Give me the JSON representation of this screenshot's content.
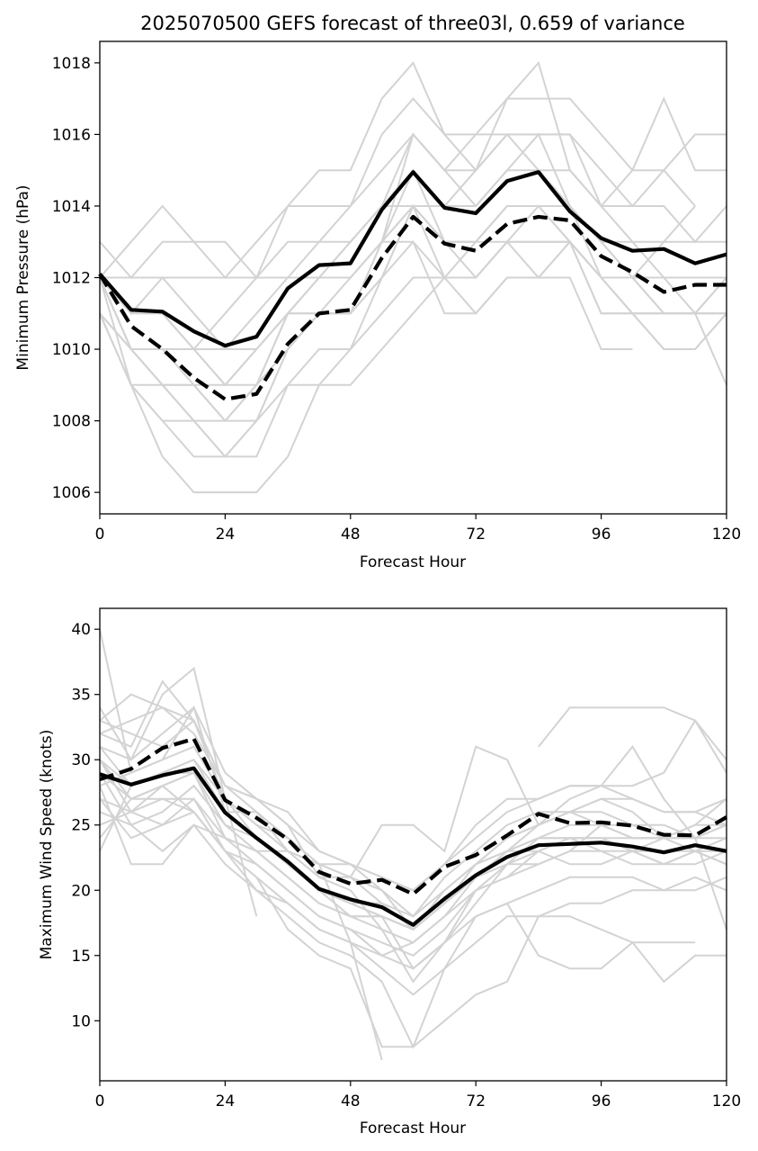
{
  "chart_data": [
    {
      "type": "line",
      "title": "2025070500 GEFS forecast of three03l, 0.659 of variance",
      "xlabel": "Forecast Hour",
      "ylabel": "Minimum Pressure (hPa)",
      "xlim": [
        0,
        120
      ],
      "ylim": [
        1005.4,
        1018.6
      ],
      "xticks": [
        0,
        24,
        48,
        72,
        96,
        120
      ],
      "yticks": [
        1006,
        1008,
        1010,
        1012,
        1014,
        1016,
        1018
      ],
      "grid": false,
      "legend": "none",
      "member_color": "#d3d3d3",
      "mean_color": "#000000",
      "x": [
        0,
        6,
        12,
        18,
        24,
        30,
        36,
        42,
        48,
        54,
        60,
        66,
        72,
        78,
        84,
        90,
        96,
        102,
        108,
        114,
        120
      ],
      "series": [
        {
          "style": "solid",
          "values": [
            1012.1,
            1011.1,
            1011.05,
            1010.5,
            1010.1,
            1010.35,
            1011.7,
            1012.35,
            1012.4,
            1013.9,
            1014.95,
            1013.95,
            1013.8,
            1014.7,
            1014.95,
            1013.85,
            1013.1,
            1012.75,
            1012.8,
            1012.4,
            1012.65
          ]
        },
        {
          "style": "dashed",
          "values": [
            1012.1,
            1010.65,
            1010.0,
            1009.2,
            1008.6,
            1008.75,
            1010.15,
            1011.0,
            1011.1,
            1012.55,
            1013.7,
            1012.95,
            1012.75,
            1013.5,
            1013.7,
            1013.6,
            1012.6,
            1012.15,
            1011.6,
            1011.8,
            1011.8
          ]
        },
        {
          "style": "member",
          "values": [
            1013,
            1012,
            1012,
            1012,
            1012,
            1012,
            1013,
            1013,
            1014,
            1015,
            1016,
            1015,
            1016,
            1016,
            1016,
            1016,
            1014,
            1014,
            1014,
            1013,
            1014
          ]
        },
        {
          "style": "member",
          "values": [
            1012,
            1012,
            1013,
            1013,
            1013,
            1012,
            1014,
            1014,
            1014,
            1016,
            1017,
            1016,
            1016,
            1017,
            1017,
            1017,
            1016,
            1015,
            1015,
            1016,
            1016
          ]
        },
        {
          "style": "member",
          "values": [
            1012,
            1013,
            1014,
            1013,
            1012,
            1013,
            1014,
            1015,
            1015,
            1017,
            1018,
            1016,
            1015,
            1017,
            1018,
            1015,
            1014,
            1015,
            1017,
            1015,
            1015
          ]
        },
        {
          "style": "member",
          "values": [
            1012,
            1011,
            1011,
            1010,
            1010,
            1011,
            1012,
            1012,
            1013,
            1014,
            1016,
            1015,
            1015,
            1016,
            1015,
            1015,
            1014,
            1013,
            1012,
            1011,
            1012
          ]
        },
        {
          "style": "member",
          "values": [
            1012,
            1011,
            1012,
            1011,
            1010,
            1010,
            1011,
            1012,
            1013,
            1014,
            1015,
            1014,
            1014,
            1015,
            1015,
            1014,
            1013,
            1013,
            1013,
            1013,
            1013
          ]
        },
        {
          "style": "member",
          "values": [
            1011,
            1010,
            1010,
            1010,
            1011,
            1012,
            1012,
            1013,
            1013,
            1014,
            1014,
            1013,
            1013,
            1014,
            1014,
            1013,
            1012,
            1012,
            1013,
            1014,
            null
          ]
        },
        {
          "style": "member",
          "values": [
            1012,
            1011,
            1011,
            1010,
            1009,
            1009,
            1011,
            1011,
            1011,
            1013,
            1016,
            1015,
            1014,
            1015,
            1016,
            1014,
            1013,
            1012,
            1012,
            1012,
            1012
          ]
        },
        {
          "style": "member",
          "values": [
            1012,
            1010,
            1010,
            1010,
            1009,
            1010,
            1011,
            1012,
            1012,
            1013,
            1014,
            1013,
            1012,
            1013,
            1014,
            1013,
            1012,
            1011,
            1011,
            1011,
            1011
          ]
        },
        {
          "style": "member",
          "values": [
            1012,
            1010,
            1009,
            1009,
            1008,
            1008,
            1010,
            1011,
            1011,
            1012,
            1014,
            1013,
            1013,
            1013,
            1013,
            1013,
            1012,
            1012,
            1011,
            1011,
            1012
          ]
        },
        {
          "style": "member",
          "values": [
            1012,
            1010,
            1010,
            1009,
            1009,
            1010,
            1011,
            1012,
            1012,
            1013,
            1013,
            1012,
            1012,
            1013,
            1012,
            1013,
            1011,
            1011,
            1011,
            1011,
            1011
          ]
        },
        {
          "style": "member",
          "values": [
            1011,
            1009,
            1008,
            1008,
            1008,
            1009,
            1011,
            1011,
            1011,
            1013,
            1015,
            1013,
            1013,
            1014,
            1014,
            1014,
            1012,
            1011,
            1010,
            1010,
            1011
          ]
        },
        {
          "style": "member",
          "values": [
            1011,
            1010,
            1009,
            1008,
            1007,
            1007,
            1009,
            1010,
            1010,
            1012,
            1014,
            1012,
            1011,
            1012,
            1012,
            1013,
            1011,
            1011,
            1011,
            1011,
            1011
          ]
        },
        {
          "style": "member",
          "values": [
            1011,
            1009,
            1008,
            1007,
            1007,
            1008,
            1010,
            1011,
            1011,
            1012,
            1013,
            1011,
            1011,
            1012,
            1012,
            1012,
            1010,
            1010,
            null,
            null,
            null
          ]
        },
        {
          "style": "member",
          "values": [
            1012,
            1009,
            1009,
            1008,
            1007,
            1008,
            1009,
            1009,
            1010,
            1011,
            1012,
            1012,
            1012,
            1013,
            1013,
            1013,
            1012,
            1011,
            1010,
            1010,
            1011
          ]
        },
        {
          "style": "member",
          "values": [
            1011,
            1009,
            1007,
            1006,
            1006,
            1006,
            1007,
            1009,
            1009,
            1010,
            1011,
            1012,
            1013,
            1014,
            1014,
            1014,
            1013,
            1012,
            1011,
            1011,
            1009
          ]
        },
        {
          "style": "member",
          "values": [
            1012,
            1010,
            1009,
            1009,
            1008,
            1009,
            1010,
            1011,
            1012,
            1013,
            1014,
            1014,
            1015,
            1016,
            1016,
            1016,
            1015,
            1014,
            1015,
            1014,
            null
          ]
        }
      ]
    },
    {
      "type": "line",
      "title": "",
      "xlabel": "Forecast Hour",
      "ylabel": "Maximum Wind Speed (knots)",
      "xlim": [
        0,
        120
      ],
      "ylim": [
        5.4,
        41.6
      ],
      "xticks": [
        0,
        24,
        48,
        72,
        96,
        120
      ],
      "yticks": [
        10,
        15,
        20,
        25,
        30,
        35,
        40
      ],
      "grid": false,
      "legend": "none",
      "member_color": "#d3d3d3",
      "mean_color": "#000000",
      "x": [
        0,
        6,
        12,
        18,
        24,
        30,
        36,
        42,
        48,
        54,
        60,
        66,
        72,
        78,
        84,
        90,
        96,
        102,
        108,
        114,
        120
      ],
      "series": [
        {
          "style": "solid",
          "values": [
            28.9,
            28.1,
            28.8,
            29.35,
            25.95,
            24.0,
            22.2,
            20.1,
            19.3,
            18.7,
            17.35,
            19.35,
            21.15,
            22.55,
            23.45,
            23.55,
            23.65,
            23.35,
            22.9,
            23.45,
            23.0
          ]
        },
        {
          "style": "dashed",
          "values": [
            28.5,
            29.3,
            30.9,
            31.6,
            26.9,
            25.55,
            23.9,
            21.4,
            20.5,
            20.8,
            19.7,
            21.8,
            22.7,
            24.2,
            25.85,
            25.15,
            25.2,
            24.95,
            24.25,
            24.2,
            25.6
          ]
        },
        {
          "style": "member",
          "values": [
            40,
            29,
            30,
            34,
            26,
            26,
            23,
            22,
            22,
            20,
            17,
            19,
            22,
            24,
            25,
            26,
            27,
            26,
            24,
            25,
            27
          ]
        },
        {
          "style": "member",
          "values": [
            34,
            30,
            35,
            37,
            27,
            24,
            22,
            20,
            18,
            18,
            14,
            16,
            20,
            21,
            23,
            24,
            24,
            23,
            24,
            23,
            23
          ]
        },
        {
          "style": "member",
          "values": [
            33,
            35,
            34,
            32,
            28,
            27,
            25,
            21,
            20,
            17,
            13,
            16,
            19,
            22,
            22,
            23,
            25,
            24,
            24,
            24,
            25
          ]
        },
        {
          "style": "member",
          "values": [
            32,
            31,
            36,
            33,
            27,
            25,
            24,
            22,
            21,
            19,
            17,
            20,
            22,
            24,
            25,
            26,
            26,
            25,
            24,
            25,
            25
          ]
        },
        {
          "style": "member",
          "values": [
            31,
            28,
            29,
            30,
            26,
            24,
            22,
            20,
            19,
            19,
            18,
            20,
            22,
            23,
            24,
            24,
            24,
            23,
            22,
            23,
            22
          ]
        },
        {
          "style": "member",
          "values": [
            30,
            27,
            28,
            29,
            25,
            23,
            21,
            19,
            18,
            18,
            17,
            19,
            21,
            22,
            24,
            24,
            23,
            23,
            22,
            23,
            22
          ]
        },
        {
          "style": "member",
          "values": [
            30,
            26,
            27,
            27,
            24,
            23,
            21,
            19,
            18,
            17,
            16,
            18,
            20,
            22,
            23,
            22,
            22,
            23,
            23,
            23,
            24
          ]
        },
        {
          "style": "member",
          "values": [
            29,
            25,
            26,
            28,
            25,
            24,
            22,
            20,
            19,
            18,
            17,
            19,
            21,
            23,
            23,
            24,
            24,
            24,
            24,
            24,
            24
          ]
        },
        {
          "style": "member",
          "values": [
            28,
            22,
            22,
            25,
            24,
            22,
            20,
            18,
            17,
            16,
            15,
            17,
            20,
            21,
            22,
            23,
            23,
            22,
            22,
            22,
            23
          ]
        },
        {
          "style": "member",
          "values": [
            27,
            24,
            25,
            26,
            23,
            21,
            19,
            17,
            16,
            14,
            12,
            14,
            18,
            19,
            20,
            21,
            21,
            21,
            20,
            20,
            21
          ]
        },
        {
          "style": "member",
          "values": [
            26,
            25,
            23,
            25,
            22,
            20,
            18,
            16,
            15,
            13,
            8,
            14,
            16,
            18,
            18,
            19,
            19,
            20,
            20,
            21,
            20
          ]
        },
        {
          "style": "member",
          "values": [
            25,
            26,
            28,
            26,
            23,
            21,
            17,
            15,
            14,
            8,
            8,
            10,
            12,
            13,
            18,
            18,
            17,
            16,
            16,
            16,
            null
          ]
        },
        {
          "style": "member",
          "values": [
            24,
            27,
            27,
            26,
            23,
            22,
            20,
            18,
            17,
            15,
            16,
            18,
            21,
            23,
            25,
            26,
            27,
            27,
            26,
            26,
            25
          ]
        },
        {
          "style": "member",
          "values": [
            23,
            28,
            29,
            29,
            26,
            24,
            22,
            20,
            19,
            18,
            17,
            20,
            22,
            23,
            24,
            25,
            25,
            24,
            24,
            23,
            22
          ]
        },
        {
          "style": "member",
          "values": [
            31,
            30,
            32,
            34,
            29,
            27,
            25,
            23,
            22,
            21,
            20,
            22,
            24,
            26,
            27,
            28,
            28,
            27,
            26,
            26,
            27
          ]
        },
        {
          "style": "member",
          "values": [
            33,
            32,
            31,
            33,
            28,
            26,
            24,
            22,
            21,
            20,
            18,
            21,
            23,
            25,
            26,
            26,
            25,
            25,
            25,
            24,
            25
          ]
        },
        {
          "style": "member",
          "values": [
            27,
            26,
            25,
            27,
            23,
            20,
            19,
            17,
            16,
            15,
            14,
            16,
            18,
            19,
            15,
            14,
            14,
            16,
            13,
            15,
            15
          ]
        },
        {
          "style": "member",
          "values": [
            32,
            33,
            34,
            33,
            28,
            27,
            26,
            23,
            22,
            21,
            20,
            22,
            25,
            27,
            27,
            28,
            28,
            28,
            29,
            33,
            30
          ]
        },
        {
          "style": "member",
          "values": [
            28,
            29,
            30,
            31,
            27,
            25,
            23,
            21,
            21,
            25,
            25,
            23,
            31,
            30,
            25,
            27,
            28,
            31,
            27,
            24,
            17
          ]
        },
        {
          "style": "member",
          "values": [
            30,
            28,
            29,
            30,
            27,
            18,
            null,
            null,
            null,
            null,
            15,
            null,
            null,
            null,
            null,
            null,
            null,
            null,
            null,
            null,
            null
          ]
        },
        {
          "style": "member",
          "values": [
            29,
            27,
            28,
            29,
            24,
            23,
            23,
            22,
            16,
            7,
            null,
            null,
            null,
            null,
            31,
            34,
            34,
            34,
            34,
            33,
            29
          ]
        }
      ]
    }
  ]
}
